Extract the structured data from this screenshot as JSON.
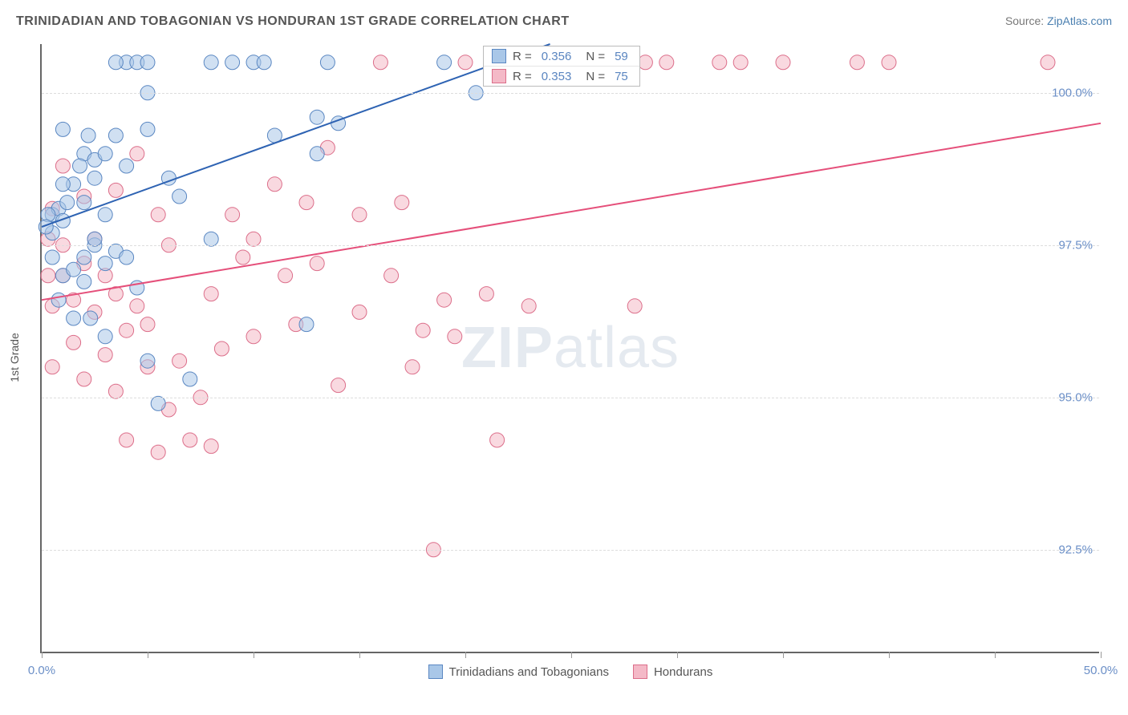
{
  "header": {
    "title": "TRINIDADIAN AND TOBAGONIAN VS HONDURAN 1ST GRADE CORRELATION CHART",
    "source_label": "Source: ",
    "source_link": "ZipAtlas.com"
  },
  "axes": {
    "y_label": "1st Grade",
    "x_min": 0.0,
    "x_max": 50.0,
    "y_min": 90.8,
    "y_max": 100.8,
    "y_gridlines": [
      92.5,
      95.0,
      97.5,
      100.0
    ],
    "y_tick_labels": [
      "92.5%",
      "95.0%",
      "97.5%",
      "100.0%"
    ],
    "x_ticks": [
      0,
      5,
      10,
      15,
      20,
      25,
      30,
      35,
      40,
      45,
      50
    ],
    "x_tick_labels": {
      "0": "0.0%",
      "50": "50.0%"
    },
    "grid_color": "#dddddd",
    "axis_color": "#666666",
    "tick_label_color": "#6b8fc7"
  },
  "watermark": {
    "zip": "ZIP",
    "atlas": "atlas"
  },
  "series": {
    "a": {
      "name": "Trinidadians and Tobagonians",
      "fill": "#a9c7e8",
      "stroke": "#5a87c2",
      "fill_opacity": 0.55,
      "line_color": "#2e63b3",
      "line_width": 2,
      "trend_start": [
        0,
        97.8
      ],
      "trend_end": [
        24,
        100.8
      ],
      "points": [
        [
          0.5,
          98.0
        ],
        [
          0.8,
          98.1
        ],
        [
          1.0,
          97.9
        ],
        [
          1.2,
          98.2
        ],
        [
          1.0,
          97.0
        ],
        [
          0.5,
          97.3
        ],
        [
          2.0,
          97.3
        ],
        [
          2.5,
          97.5
        ],
        [
          3.0,
          97.2
        ],
        [
          3.5,
          97.4
        ],
        [
          2.0,
          99.0
        ],
        [
          2.5,
          98.6
        ],
        [
          3.0,
          98.0
        ],
        [
          3.5,
          99.3
        ],
        [
          4.0,
          100.5
        ],
        [
          4.5,
          100.5
        ],
        [
          3.5,
          100.5
        ],
        [
          5.0,
          100.5
        ],
        [
          5.0,
          99.4
        ],
        [
          5.0,
          100.0
        ],
        [
          6.0,
          98.6
        ],
        [
          6.5,
          98.3
        ],
        [
          4.0,
          97.3
        ],
        [
          4.5,
          96.8
        ],
        [
          5.0,
          95.6
        ],
        [
          5.5,
          94.9
        ],
        [
          2.5,
          97.6
        ],
        [
          2.0,
          96.9
        ],
        [
          1.5,
          96.3
        ],
        [
          3.0,
          96.0
        ],
        [
          8.0,
          100.5
        ],
        [
          8.0,
          97.6
        ],
        [
          9.0,
          100.5
        ],
        [
          10.0,
          100.5
        ],
        [
          10.5,
          100.5
        ],
        [
          11.0,
          99.3
        ],
        [
          13.0,
          99.0
        ],
        [
          13.0,
          99.6
        ],
        [
          13.5,
          100.5
        ],
        [
          14.0,
          99.5
        ],
        [
          7.0,
          95.3
        ],
        [
          19.0,
          100.5
        ],
        [
          12.5,
          96.2
        ],
        [
          1.0,
          99.4
        ],
        [
          0.5,
          97.7
        ],
        [
          1.5,
          98.5
        ],
        [
          1.0,
          98.5
        ],
        [
          2.0,
          98.2
        ],
        [
          2.5,
          98.9
        ],
        [
          3.0,
          99.0
        ],
        [
          1.5,
          97.1
        ],
        [
          0.3,
          98.0
        ],
        [
          0.2,
          97.8
        ],
        [
          20.5,
          100.0
        ],
        [
          0.8,
          96.6
        ],
        [
          2.3,
          96.3
        ],
        [
          1.8,
          98.8
        ],
        [
          2.2,
          99.3
        ],
        [
          4.0,
          98.8
        ]
      ]
    },
    "b": {
      "name": "Hondurans",
      "fill": "#f4b9c7",
      "stroke": "#dc6e8a",
      "fill_opacity": 0.55,
      "line_color": "#e54f7a",
      "line_width": 2,
      "trend_start": [
        0,
        96.6
      ],
      "trend_end": [
        50,
        99.5
      ],
      "points": [
        [
          0.5,
          98.1
        ],
        [
          0.3,
          97.6
        ],
        [
          1.0,
          97.0
        ],
        [
          1.5,
          96.6
        ],
        [
          2.0,
          97.2
        ],
        [
          2.5,
          97.6
        ],
        [
          3.0,
          97.0
        ],
        [
          2.5,
          96.4
        ],
        [
          3.5,
          96.7
        ],
        [
          4.0,
          96.1
        ],
        [
          4.5,
          96.5
        ],
        [
          5.0,
          95.5
        ],
        [
          5.0,
          96.2
        ],
        [
          5.5,
          94.1
        ],
        [
          6.0,
          94.8
        ],
        [
          6.5,
          95.6
        ],
        [
          7.0,
          94.3
        ],
        [
          7.5,
          95.0
        ],
        [
          8.0,
          94.2
        ],
        [
          8.5,
          95.8
        ],
        [
          9.0,
          98.0
        ],
        [
          9.5,
          97.3
        ],
        [
          10.0,
          97.6
        ],
        [
          10.0,
          96.0
        ],
        [
          11.0,
          98.5
        ],
        [
          11.5,
          97.0
        ],
        [
          12.0,
          96.2
        ],
        [
          12.5,
          98.2
        ],
        [
          13.0,
          97.2
        ],
        [
          13.5,
          99.1
        ],
        [
          14.0,
          95.2
        ],
        [
          15.0,
          98.0
        ],
        [
          15.0,
          96.4
        ],
        [
          16.0,
          100.5
        ],
        [
          16.5,
          97.0
        ],
        [
          17.0,
          98.2
        ],
        [
          17.5,
          95.5
        ],
        [
          18.0,
          96.1
        ],
        [
          18.5,
          92.5
        ],
        [
          19.0,
          96.6
        ],
        [
          19.5,
          96.0
        ],
        [
          20.0,
          100.5
        ],
        [
          21.0,
          96.7
        ],
        [
          21.5,
          94.3
        ],
        [
          22.0,
          100.5
        ],
        [
          23.0,
          96.5
        ],
        [
          24.0,
          100.5
        ],
        [
          25.5,
          100.5
        ],
        [
          26.0,
          100.5
        ],
        [
          27.0,
          100.5
        ],
        [
          28.0,
          96.5
        ],
        [
          28.5,
          100.5
        ],
        [
          29.5,
          100.5
        ],
        [
          32.0,
          100.5
        ],
        [
          33.0,
          100.5
        ],
        [
          35.0,
          100.5
        ],
        [
          38.5,
          100.5
        ],
        [
          40.0,
          100.5
        ],
        [
          47.5,
          100.5
        ],
        [
          4.0,
          94.3
        ],
        [
          3.5,
          95.1
        ],
        [
          3.0,
          95.7
        ],
        [
          2.0,
          95.3
        ],
        [
          1.5,
          95.9
        ],
        [
          1.0,
          97.5
        ],
        [
          0.5,
          96.5
        ],
        [
          4.5,
          99.0
        ],
        [
          5.5,
          98.0
        ],
        [
          6.0,
          97.5
        ],
        [
          3.5,
          98.4
        ],
        [
          2.0,
          98.3
        ],
        [
          1.0,
          98.8
        ],
        [
          0.3,
          97.0
        ],
        [
          0.5,
          95.5
        ],
        [
          8.0,
          96.7
        ]
      ]
    }
  },
  "stats": {
    "rows": [
      {
        "swatch_fill": "#a9c7e8",
        "swatch_stroke": "#5a87c2",
        "r_label": "R =",
        "r_val": "0.356",
        "n_label": "N =",
        "n_val": "59"
      },
      {
        "swatch_fill": "#f4b9c7",
        "swatch_stroke": "#dc6e8a",
        "r_label": "R =",
        "r_val": "0.353",
        "n_label": "N =",
        "n_val": "75"
      }
    ]
  },
  "bottom_legend": [
    {
      "fill": "#a9c7e8",
      "stroke": "#5a87c2",
      "label": "Trinidadians and Tobagonians"
    },
    {
      "fill": "#f4b9c7",
      "stroke": "#dc6e8a",
      "label": "Hondurans"
    }
  ],
  "marker_radius": 9
}
